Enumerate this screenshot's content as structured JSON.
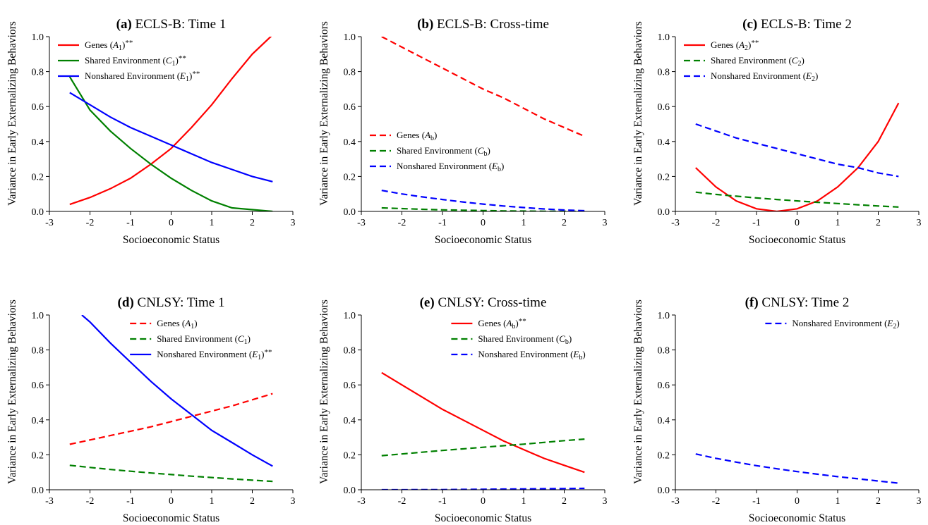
{
  "chart_data": [
    {
      "type": "line",
      "panel": "(a)",
      "title": "ECLS-B: Time 1",
      "xlabel": "Socioeconomic Status",
      "ylabel": "Variance in Early Externalizing Behaviors",
      "xlim": [
        -3,
        3
      ],
      "ylim": [
        0,
        1.0
      ],
      "xticks": [
        "-3",
        "-2",
        "-1",
        "0",
        "1",
        "2",
        "3"
      ],
      "yticks": [
        "0.0",
        "0.2",
        "0.4",
        "0.6",
        "0.8",
        "1.0"
      ],
      "legend_position": "top-left",
      "series": [
        {
          "name": "Genes",
          "sym": "A",
          "sub": "1",
          "suffix": "**",
          "color": "#ff0000",
          "style": "solid",
          "x": [
            -2.5,
            -2,
            -1.5,
            -1,
            -0.5,
            0,
            0.5,
            1,
            1.5,
            2,
            2.5
          ],
          "y": [
            0.04,
            0.08,
            0.13,
            0.19,
            0.27,
            0.36,
            0.48,
            0.61,
            0.76,
            0.9,
            1.01
          ]
        },
        {
          "name": "Shared Environment",
          "sym": "C",
          "sub": "1",
          "suffix": "**",
          "color": "#008000",
          "style": "solid",
          "x": [
            -2.5,
            -2,
            -1.5,
            -1,
            -0.5,
            0,
            0.5,
            1,
            1.5,
            2,
            2.5
          ],
          "y": [
            0.77,
            0.58,
            0.46,
            0.36,
            0.27,
            0.19,
            0.12,
            0.06,
            0.02,
            0.01,
            0.0
          ]
        },
        {
          "name": "Nonshared Environment",
          "sym": "E",
          "sub": "1",
          "suffix": "**",
          "color": "#0000ff",
          "style": "solid",
          "x": [
            -2.5,
            -2,
            -1.5,
            -1,
            -0.5,
            0,
            0.5,
            1,
            1.5,
            2,
            2.5
          ],
          "y": [
            0.68,
            0.61,
            0.54,
            0.48,
            0.43,
            0.38,
            0.33,
            0.28,
            0.24,
            0.2,
            0.17
          ]
        }
      ]
    },
    {
      "type": "line",
      "panel": "(b)",
      "title": "ECLS-B: Cross-time",
      "xlabel": "Socioeconomic Status",
      "ylabel": "Variance in Early Externalizing Behaviors",
      "xlim": [
        -3,
        3
      ],
      "ylim": [
        0,
        1.0
      ],
      "xticks": [
        "-3",
        "-2",
        "-1",
        "0",
        "1",
        "2",
        "3"
      ],
      "yticks": [
        "0.0",
        "0.2",
        "0.4",
        "0.6",
        "0.8",
        "1.0"
      ],
      "legend_position": "center-left",
      "series": [
        {
          "name": "Genes",
          "sym": "A",
          "sub": "b",
          "suffix": "",
          "color": "#ff0000",
          "style": "dashed",
          "x": [
            -2.5,
            -2,
            -1.5,
            -1,
            -0.5,
            0,
            0.5,
            1,
            1.5,
            2,
            2.5
          ],
          "y": [
            1.0,
            0.94,
            0.88,
            0.82,
            0.76,
            0.7,
            0.65,
            0.59,
            0.53,
            0.48,
            0.43
          ]
        },
        {
          "name": "Shared Environment",
          "sym": "C",
          "sub": "b",
          "suffix": "",
          "color": "#008000",
          "style": "dashed",
          "x": [
            -2.5,
            -2,
            -1.5,
            -1,
            -0.5,
            0,
            0.5,
            1,
            1.5,
            2,
            2.5
          ],
          "y": [
            0.02,
            0.016,
            0.012,
            0.009,
            0.007,
            0.005,
            0.003,
            0.002,
            0.001,
            0.001,
            0.0
          ]
        },
        {
          "name": "Nonshared Environment",
          "sym": "E",
          "sub": "b",
          "suffix": "",
          "color": "#0000ff",
          "style": "dashed",
          "x": [
            -2.5,
            -2,
            -1.5,
            -1,
            -0.5,
            0,
            0.5,
            1,
            1.5,
            2,
            2.5
          ],
          "y": [
            0.12,
            0.1,
            0.083,
            0.068,
            0.054,
            0.042,
            0.031,
            0.022,
            0.014,
            0.008,
            0.004
          ]
        }
      ]
    },
    {
      "type": "line",
      "panel": "(c)",
      "title": "ECLS-B: Time 2",
      "xlabel": "Socioeconomic Status",
      "ylabel": "Variance in Early Externalizing Behaviors",
      "xlim": [
        -3,
        3
      ],
      "ylim": [
        0,
        1.0
      ],
      "xticks": [
        "-3",
        "-2",
        "-1",
        "0",
        "1",
        "2",
        "3"
      ],
      "yticks": [
        "0.0",
        "0.2",
        "0.4",
        "0.6",
        "0.8",
        "1.0"
      ],
      "legend_position": "top-left",
      "series": [
        {
          "name": "Genes",
          "sym": "A",
          "sub": "2",
          "suffix": "**",
          "color": "#ff0000",
          "style": "solid",
          "x": [
            -2.5,
            -2,
            -1.5,
            -1,
            -0.5,
            0,
            0.5,
            1,
            1.5,
            2,
            2.5
          ],
          "y": [
            0.25,
            0.14,
            0.06,
            0.015,
            0.0,
            0.015,
            0.06,
            0.14,
            0.25,
            0.4,
            0.62
          ]
        },
        {
          "name": "Shared Environment",
          "sym": "C",
          "sub": "2",
          "suffix": "",
          "color": "#008000",
          "style": "dashed",
          "x": [
            -2.5,
            -2,
            -1.5,
            -1,
            -0.5,
            0,
            0.5,
            1,
            1.5,
            2,
            2.5
          ],
          "y": [
            0.11,
            0.097,
            0.087,
            0.077,
            0.068,
            0.06,
            0.052,
            0.045,
            0.038,
            0.031,
            0.025
          ]
        },
        {
          "name": "Nonshared Environment",
          "sym": "E",
          "sub": "2",
          "suffix": "",
          "color": "#0000ff",
          "style": "dashed",
          "x": [
            -2.5,
            -2,
            -1.5,
            -1,
            -0.5,
            0,
            0.5,
            1,
            1.5,
            2,
            2.5
          ],
          "y": [
            0.5,
            0.46,
            0.42,
            0.39,
            0.36,
            0.33,
            0.3,
            0.27,
            0.25,
            0.22,
            0.2
          ]
        }
      ]
    },
    {
      "type": "line",
      "panel": "(d)",
      "title": "CNLSY: Time 1",
      "xlabel": "Socioeconomic Status",
      "ylabel": "Variance in Early Externalizing Behaviors",
      "xlim": [
        -3,
        3
      ],
      "ylim": [
        0,
        1.0
      ],
      "xticks": [
        "-3",
        "-2",
        "-1",
        "0",
        "1",
        "2",
        "3"
      ],
      "yticks": [
        "0.0",
        "0.2",
        "0.4",
        "0.6",
        "0.8",
        "1.0"
      ],
      "legend_position": "top-right",
      "series": [
        {
          "name": "Genes",
          "sym": "A",
          "sub": "1",
          "suffix": "",
          "color": "#ff0000",
          "style": "dashed",
          "x": [
            -2.5,
            -2,
            -1.5,
            -1,
            -0.5,
            0,
            0.5,
            1,
            1.5,
            2,
            2.5
          ],
          "y": [
            0.26,
            0.285,
            0.31,
            0.335,
            0.36,
            0.39,
            0.42,
            0.45,
            0.48,
            0.515,
            0.55
          ]
        },
        {
          "name": "Shared Environment",
          "sym": "C",
          "sub": "1",
          "suffix": "",
          "color": "#008000",
          "style": "dashed",
          "x": [
            -2.5,
            -2,
            -1.5,
            -1,
            -0.5,
            0,
            0.5,
            1,
            1.5,
            2,
            2.5
          ],
          "y": [
            0.14,
            0.128,
            0.116,
            0.106,
            0.096,
            0.087,
            0.078,
            0.07,
            0.062,
            0.055,
            0.048
          ]
        },
        {
          "name": "Nonshared Environment",
          "sym": "E",
          "sub": "1",
          "suffix": "**",
          "color": "#0000ff",
          "style": "solid",
          "x": [
            -2.2,
            -2,
            -1.5,
            -1,
            -0.5,
            0,
            0.5,
            1,
            1.5,
            2,
            2.5
          ],
          "y": [
            1.0,
            0.96,
            0.84,
            0.73,
            0.62,
            0.52,
            0.43,
            0.34,
            0.27,
            0.2,
            0.135
          ]
        }
      ]
    },
    {
      "type": "line",
      "panel": "(e)",
      "title": "CNLSY: Cross-time",
      "xlabel": "Socioeconomic Status",
      "ylabel": "Variance in Early Externalizing Behaviors",
      "xlim": [
        -3,
        3
      ],
      "ylim": [
        0,
        1.0
      ],
      "xticks": [
        "-3",
        "-2",
        "-1",
        "0",
        "1",
        "2",
        "3"
      ],
      "yticks": [
        "0.0",
        "0.2",
        "0.4",
        "0.6",
        "0.8",
        "1.0"
      ],
      "legend_position": "top-right",
      "series": [
        {
          "name": "Genes",
          "sym": "A",
          "sub": "b",
          "suffix": "**",
          "color": "#ff0000",
          "style": "solid",
          "x": [
            -2.5,
            -2,
            -1.5,
            -1,
            -0.5,
            0,
            0.5,
            1,
            1.5,
            2,
            2.5
          ],
          "y": [
            0.67,
            0.6,
            0.53,
            0.46,
            0.4,
            0.34,
            0.28,
            0.23,
            0.18,
            0.14,
            0.1
          ]
        },
        {
          "name": "Shared Environment",
          "sym": "C",
          "sub": "b",
          "suffix": "",
          "color": "#008000",
          "style": "dashed",
          "x": [
            -2.5,
            -2,
            -1.5,
            -1,
            -0.5,
            0,
            0.5,
            1,
            1.5,
            2,
            2.5
          ],
          "y": [
            0.195,
            0.205,
            0.215,
            0.225,
            0.234,
            0.243,
            0.252,
            0.261,
            0.271,
            0.281,
            0.29
          ]
        },
        {
          "name": "Nonshared Environment",
          "sym": "E",
          "sub": "b",
          "suffix": "",
          "color": "#0000ff",
          "style": "dashed",
          "x": [
            -2.5,
            -2,
            -1.5,
            -1,
            -0.5,
            0,
            0.5,
            1,
            1.5,
            2,
            2.5
          ],
          "y": [
            0.0,
            0.0,
            0.001,
            0.001,
            0.002,
            0.003,
            0.004,
            0.005,
            0.006,
            0.007,
            0.008
          ]
        }
      ]
    },
    {
      "type": "line",
      "panel": "(f)",
      "title": "CNLSY: Time 2",
      "xlabel": "Socioeconomic Status",
      "ylabel": "Variance in Early Externalizing Behaviors",
      "xlim": [
        -3,
        3
      ],
      "ylim": [
        0,
        1.0
      ],
      "xticks": [
        "-3",
        "-2",
        "-1",
        "0",
        "1",
        "2",
        "3"
      ],
      "yticks": [
        "0.0",
        "0.2",
        "0.4",
        "0.6",
        "0.8",
        "1.0"
      ],
      "legend_position": "top-right",
      "series": [
        {
          "name": "Nonshared Environment",
          "sym": "E",
          "sub": "2",
          "suffix": "",
          "color": "#0000ff",
          "style": "dashed",
          "x": [
            -2.5,
            -2,
            -1.5,
            -1,
            -0.5,
            0,
            0.5,
            1,
            1.5,
            2,
            2.5
          ],
          "y": [
            0.205,
            0.18,
            0.158,
            0.138,
            0.12,
            0.104,
            0.089,
            0.075,
            0.063,
            0.05,
            0.038
          ]
        }
      ]
    }
  ]
}
